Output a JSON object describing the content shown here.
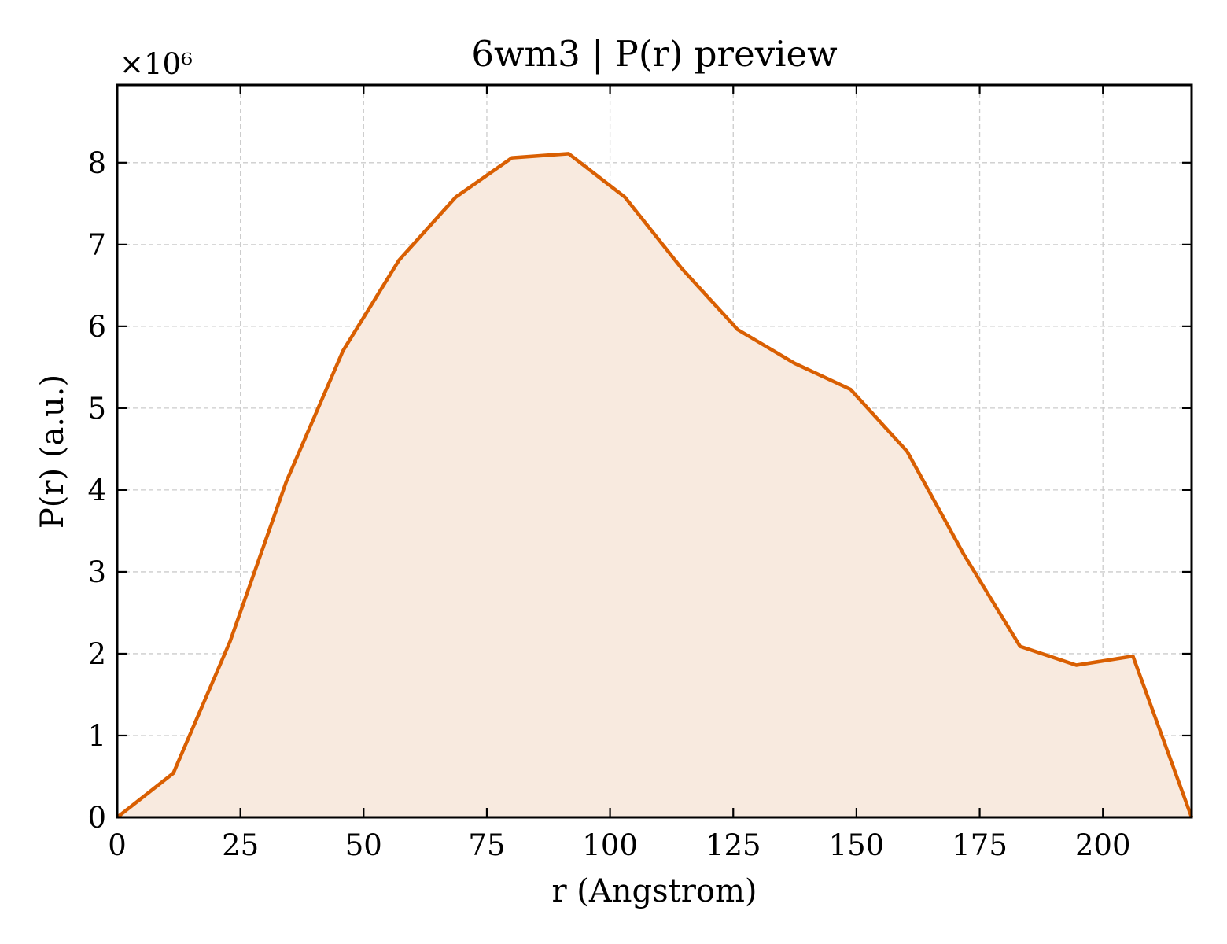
{
  "chart_data": {
    "type": "area",
    "title": "6wm3 | P(r) preview",
    "xlabel": "r (Angstrom)",
    "ylabel": "P(r) (a.u.)",
    "y_multiplier_label": "×10⁶",
    "xlim": [
      0,
      218
    ],
    "ylim": [
      0,
      8.95
    ],
    "xticks": [
      0,
      25,
      50,
      75,
      100,
      125,
      150,
      175,
      200
    ],
    "yticks": [
      0,
      1,
      2,
      3,
      4,
      5,
      6,
      7,
      8
    ],
    "grid": true,
    "series": [
      {
        "x": [
          0,
          11.4,
          22.9,
          34.3,
          45.8,
          57.2,
          68.7,
          80.1,
          91.6,
          103.0,
          114.5,
          125.9,
          137.4,
          148.8,
          160.3,
          171.7,
          183.2,
          194.6,
          206.1,
          218.0
        ],
        "y": [
          0.0,
          0.54,
          2.15,
          4.1,
          5.7,
          6.81,
          7.58,
          8.06,
          8.11,
          7.58,
          6.71,
          5.96,
          5.55,
          5.23,
          4.47,
          3.22,
          2.09,
          1.86,
          1.97,
          0.0
        ],
        "line_color": "#d95f02",
        "fill_color": "#f8eadf"
      }
    ]
  }
}
